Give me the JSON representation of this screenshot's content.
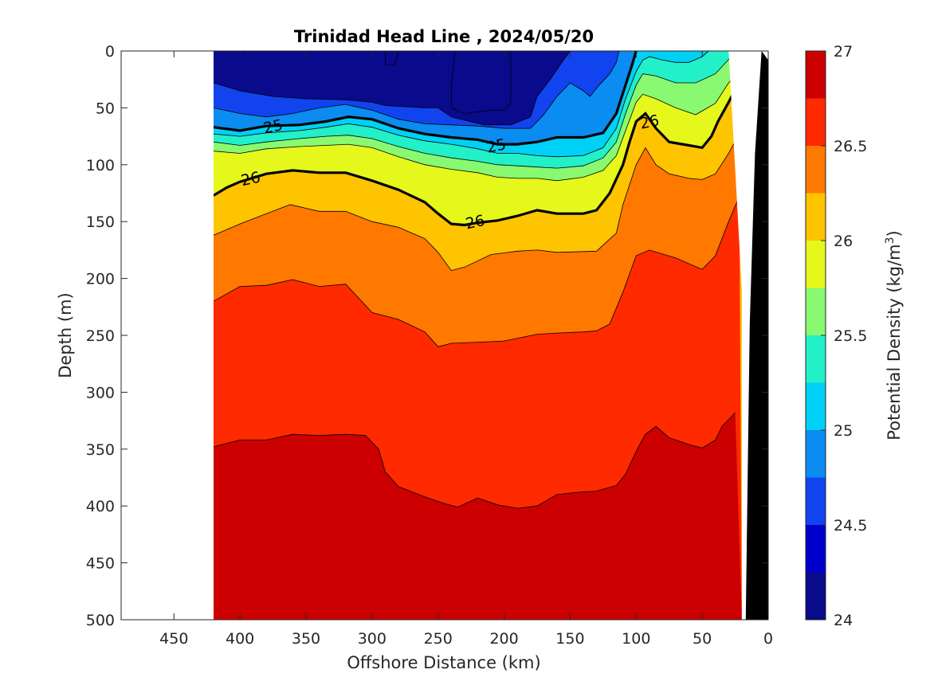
{
  "chart_data": {
    "type": "contour",
    "title": "Trinidad Head Line , 2024/05/20",
    "xlabel": "Offshore Distance (km)",
    "ylabel": "Depth (m)",
    "colorbar_label": "Potential Density (kg/m",
    "colorbar_label_sup": "3",
    "colorbar_label_close": ")",
    "xlim": [
      490,
      0
    ],
    "ylim": [
      0,
      500
    ],
    "x_reversed": true,
    "y_reversed": true,
    "x_ticks": [
      450,
      400,
      350,
      300,
      250,
      200,
      150,
      100,
      50,
      0
    ],
    "y_ticks": [
      0,
      50,
      100,
      150,
      200,
      250,
      300,
      350,
      400,
      450,
      500
    ],
    "colorbar": {
      "min": 24,
      "max": 27,
      "step": 0.25,
      "ticks": [
        24,
        24.5,
        25,
        25.5,
        26,
        26.5,
        27
      ],
      "colors": [
        "#0a0a8c",
        "#0000cc",
        "#1144ee",
        "#0a8cf0",
        "#00d0f5",
        "#22f0c8",
        "#88f970",
        "#e6f71c",
        "#ffc400",
        "#ff7800",
        "#ff2a00",
        "#cc0000"
      ]
    },
    "data_region_x": [
      420,
      20
    ],
    "seafloor": [
      [
        30,
        0
      ],
      [
        20,
        210
      ],
      [
        20,
        500
      ]
    ],
    "isopycnals": [
      {
        "value": 24.25,
        "points": [
          [
            290,
            0
          ],
          [
            290,
            12
          ],
          [
            283,
            12
          ],
          [
            280,
            0
          ]
        ]
      },
      {
        "value": 24.25,
        "points": [
          [
            237,
            0
          ],
          [
            240,
            30
          ],
          [
            240,
            50
          ],
          [
            230,
            55
          ],
          [
            210,
            52
          ],
          [
            200,
            52
          ],
          [
            195,
            45
          ],
          [
            195,
            0
          ]
        ]
      },
      {
        "value": 24.5,
        "points": [
          [
            420,
            28
          ],
          [
            400,
            35
          ],
          [
            375,
            40
          ],
          [
            350,
            42
          ],
          [
            320,
            43
          ],
          [
            300,
            45
          ],
          [
            290,
            48
          ],
          [
            260,
            50
          ],
          [
            250,
            50
          ],
          [
            240,
            58
          ],
          [
            215,
            65
          ],
          [
            195,
            65
          ],
          [
            180,
            58
          ],
          [
            175,
            40
          ],
          [
            165,
            25
          ],
          [
            155,
            8
          ],
          [
            150,
            0
          ]
        ]
      },
      {
        "value": 24.75,
        "points": [
          [
            420,
            50
          ],
          [
            400,
            55
          ],
          [
            380,
            58
          ],
          [
            360,
            55
          ],
          [
            340,
            50
          ],
          [
            320,
            47
          ],
          [
            300,
            52
          ],
          [
            280,
            60
          ],
          [
            260,
            64
          ],
          [
            240,
            65
          ],
          [
            220,
            66
          ],
          [
            200,
            68
          ],
          [
            180,
            68
          ],
          [
            170,
            56
          ],
          [
            160,
            40
          ],
          [
            150,
            28
          ],
          [
            140,
            35
          ],
          [
            135,
            40
          ],
          [
            128,
            30
          ],
          [
            120,
            20
          ],
          [
            115,
            10
          ],
          [
            113,
            0
          ]
        ]
      },
      {
        "value": 25.0,
        "points": [
          [
            420,
            67
          ],
          [
            400,
            70
          ],
          [
            380,
            66
          ],
          [
            355,
            65
          ],
          [
            335,
            62
          ],
          [
            318,
            58
          ],
          [
            300,
            60
          ],
          [
            280,
            68
          ],
          [
            260,
            73
          ],
          [
            240,
            76
          ],
          [
            220,
            78
          ],
          [
            205,
            82
          ],
          [
            190,
            82
          ],
          [
            175,
            80
          ],
          [
            160,
            76
          ],
          [
            140,
            76
          ],
          [
            125,
            72
          ],
          [
            115,
            55
          ],
          [
            108,
            30
          ],
          [
            103,
            12
          ],
          [
            100,
            0
          ]
        ]
      },
      {
        "value": 25.25,
        "points": [
          [
            420,
            73
          ],
          [
            400,
            75
          ],
          [
            380,
            72
          ],
          [
            355,
            70
          ],
          [
            335,
            67
          ],
          [
            318,
            64
          ],
          [
            300,
            67
          ],
          [
            280,
            74
          ],
          [
            260,
            79
          ],
          [
            240,
            82
          ],
          [
            220,
            86
          ],
          [
            205,
            90
          ],
          [
            190,
            90
          ],
          [
            175,
            92
          ],
          [
            160,
            93
          ],
          [
            140,
            92
          ],
          [
            125,
            85
          ],
          [
            115,
            68
          ],
          [
            108,
            42
          ],
          [
            100,
            18
          ],
          [
            95,
            8
          ],
          [
            90,
            5
          ],
          [
            80,
            8
          ],
          [
            70,
            10
          ],
          [
            60,
            10
          ],
          [
            50,
            5
          ],
          [
            45,
            0
          ]
        ]
      },
      {
        "value": 25.5,
        "points": [
          [
            420,
            80
          ],
          [
            400,
            83
          ],
          [
            380,
            80
          ],
          [
            355,
            77
          ],
          [
            335,
            75
          ],
          [
            318,
            74
          ],
          [
            300,
            77
          ],
          [
            280,
            84
          ],
          [
            260,
            90
          ],
          [
            240,
            94
          ],
          [
            220,
            97
          ],
          [
            205,
            100
          ],
          [
            190,
            101
          ],
          [
            175,
            102
          ],
          [
            160,
            103
          ],
          [
            140,
            101
          ],
          [
            125,
            94
          ],
          [
            115,
            80
          ],
          [
            108,
            55
          ],
          [
            100,
            30
          ],
          [
            95,
            20
          ],
          [
            85,
            22
          ],
          [
            70,
            28
          ],
          [
            55,
            28
          ],
          [
            40,
            20
          ],
          [
            28,
            5
          ],
          [
            25,
            0
          ]
        ]
      },
      {
        "value": 25.75,
        "points": [
          [
            420,
            88
          ],
          [
            400,
            90
          ],
          [
            380,
            86
          ],
          [
            355,
            84
          ],
          [
            335,
            83
          ],
          [
            318,
            82
          ],
          [
            300,
            85
          ],
          [
            280,
            93
          ],
          [
            260,
            100
          ],
          [
            240,
            104
          ],
          [
            220,
            107
          ],
          [
            205,
            111
          ],
          [
            190,
            112
          ],
          [
            175,
            112
          ],
          [
            160,
            114
          ],
          [
            140,
            111
          ],
          [
            125,
            105
          ],
          [
            115,
            92
          ],
          [
            108,
            70
          ],
          [
            100,
            45
          ],
          [
            95,
            38
          ],
          [
            85,
            42
          ],
          [
            70,
            50
          ],
          [
            55,
            56
          ],
          [
            40,
            46
          ],
          [
            30,
            28
          ],
          [
            22,
            18
          ]
        ]
      },
      {
        "value": 26.0,
        "points": [
          [
            420,
            127
          ],
          [
            410,
            120
          ],
          [
            400,
            115
          ],
          [
            380,
            108
          ],
          [
            360,
            105
          ],
          [
            340,
            107
          ],
          [
            320,
            107
          ],
          [
            300,
            114
          ],
          [
            280,
            122
          ],
          [
            260,
            133
          ],
          [
            250,
            143
          ],
          [
            240,
            152
          ],
          [
            230,
            153
          ],
          [
            220,
            151
          ],
          [
            205,
            149
          ],
          [
            190,
            145
          ],
          [
            175,
            140
          ],
          [
            160,
            143
          ],
          [
            140,
            143
          ],
          [
            130,
            140
          ],
          [
            120,
            125
          ],
          [
            110,
            100
          ],
          [
            105,
            80
          ],
          [
            100,
            62
          ],
          [
            93,
            55
          ],
          [
            85,
            68
          ],
          [
            75,
            80
          ],
          [
            60,
            83
          ],
          [
            50,
            85
          ],
          [
            43,
            75
          ],
          [
            38,
            62
          ],
          [
            30,
            45
          ],
          [
            25,
            34
          ],
          [
            20,
            32
          ]
        ]
      },
      {
        "value": 26.25,
        "points": [
          [
            420,
            162
          ],
          [
            400,
            152
          ],
          [
            380,
            143
          ],
          [
            362,
            135
          ],
          [
            340,
            141
          ],
          [
            320,
            141
          ],
          [
            300,
            150
          ],
          [
            280,
            155
          ],
          [
            260,
            165
          ],
          [
            250,
            177
          ],
          [
            240,
            193
          ],
          [
            230,
            190
          ],
          [
            210,
            179
          ],
          [
            190,
            176
          ],
          [
            175,
            175
          ],
          [
            160,
            177
          ],
          [
            130,
            176
          ],
          [
            115,
            160
          ],
          [
            110,
            135
          ],
          [
            100,
            100
          ],
          [
            93,
            85
          ],
          [
            85,
            100
          ],
          [
            75,
            108
          ],
          [
            60,
            112
          ],
          [
            50,
            113
          ],
          [
            40,
            108
          ],
          [
            30,
            90
          ],
          [
            22,
            73
          ]
        ]
      },
      {
        "value": 26.5,
        "points": [
          [
            420,
            220
          ],
          [
            400,
            207
          ],
          [
            380,
            206
          ],
          [
            360,
            201
          ],
          [
            340,
            207
          ],
          [
            320,
            205
          ],
          [
            300,
            230
          ],
          [
            280,
            236
          ],
          [
            260,
            247
          ],
          [
            250,
            260
          ],
          [
            240,
            257
          ],
          [
            220,
            256
          ],
          [
            200,
            255
          ],
          [
            175,
            249
          ],
          [
            160,
            248
          ],
          [
            140,
            247
          ],
          [
            130,
            246
          ],
          [
            120,
            240
          ],
          [
            110,
            212
          ],
          [
            100,
            180
          ],
          [
            90,
            175
          ],
          [
            70,
            182
          ],
          [
            50,
            192
          ],
          [
            40,
            180
          ],
          [
            30,
            150
          ],
          [
            22,
            128
          ]
        ]
      },
      {
        "value": 26.75,
        "points": [
          [
            420,
            348
          ],
          [
            400,
            342
          ],
          [
            380,
            342
          ],
          [
            360,
            337
          ],
          [
            340,
            338
          ],
          [
            320,
            337
          ],
          [
            305,
            338
          ],
          [
            295,
            350
          ],
          [
            290,
            370
          ],
          [
            280,
            383
          ],
          [
            260,
            392
          ],
          [
            245,
            398
          ],
          [
            235,
            401
          ],
          [
            220,
            393
          ],
          [
            205,
            399
          ],
          [
            190,
            402
          ],
          [
            175,
            400
          ],
          [
            160,
            390
          ],
          [
            145,
            388
          ],
          [
            130,
            387
          ],
          [
            115,
            382
          ],
          [
            108,
            372
          ],
          [
            100,
            352
          ],
          [
            93,
            337
          ],
          [
            85,
            330
          ],
          [
            75,
            340
          ],
          [
            60,
            346
          ],
          [
            50,
            349
          ],
          [
            40,
            342
          ],
          [
            35,
            330
          ],
          [
            25,
            318
          ]
        ]
      }
    ],
    "bold_contours": [
      25,
      26
    ],
    "contour_labels": [
      {
        "text": "25",
        "x": 375,
        "y": 66
      },
      {
        "text": "25",
        "x": 206,
        "y": 83
      },
      {
        "text": "26",
        "x": 392,
        "y": 112
      },
      {
        "text": "26",
        "x": 222,
        "y": 150
      },
      {
        "text": "26",
        "x": 90,
        "y": 62
      }
    ]
  }
}
